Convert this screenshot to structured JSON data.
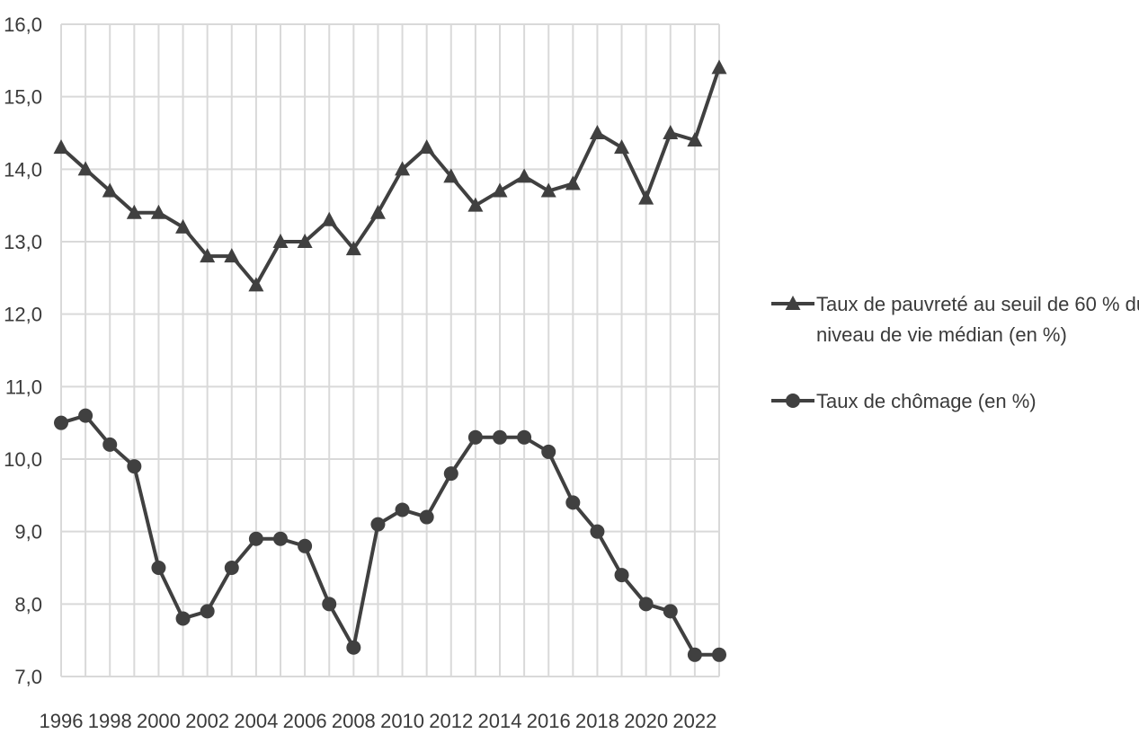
{
  "chart_data": {
    "type": "line",
    "title": "",
    "xlabel": "",
    "ylabel": "",
    "x": [
      1996,
      1997,
      1998,
      1999,
      2000,
      2001,
      2002,
      2003,
      2004,
      2005,
      2006,
      2007,
      2008,
      2009,
      2010,
      2011,
      2012,
      2013,
      2014,
      2015,
      2016,
      2017,
      2018,
      2019,
      2020,
      2021,
      2022,
      2023
    ],
    "xlim": [
      1996,
      2023
    ],
    "ylim": [
      7.0,
      16.0
    ],
    "x_tick_labels": [
      "1996",
      "1998",
      "2000",
      "2002",
      "2004",
      "2006",
      "2008",
      "2010",
      "2012",
      "2014",
      "2016",
      "2018",
      "2020",
      "2022"
    ],
    "y_tick_labels": [
      "7,0",
      "8,0",
      "9,0",
      "10,0",
      "11,0",
      "12,0",
      "13,0",
      "14,0",
      "15,0",
      "16,0"
    ],
    "grid": true,
    "legend_position": "right",
    "series": [
      {
        "name": "Taux de pauvreté au seuil de 60 % du niveau de vie médian (en %)",
        "name_lines": [
          "Taux de pauvreté au seuil de 60 % du",
          "niveau de vie médian (en %)"
        ],
        "marker": "triangle",
        "values": [
          14.3,
          14.0,
          13.7,
          13.4,
          13.4,
          13.2,
          12.8,
          12.8,
          12.4,
          13.0,
          13.0,
          13.3,
          12.9,
          13.4,
          14.0,
          14.3,
          13.9,
          13.5,
          13.7,
          13.9,
          13.7,
          13.8,
          14.5,
          14.3,
          13.6,
          14.5,
          14.4,
          15.4
        ]
      },
      {
        "name": "Taux de chômage (en %)",
        "name_lines": [
          "Taux de chômage (en %)"
        ],
        "marker": "circle",
        "values": [
          10.5,
          10.6,
          10.2,
          9.9,
          8.5,
          7.8,
          7.9,
          8.5,
          8.9,
          8.9,
          8.8,
          8.0,
          7.4,
          9.1,
          9.3,
          9.2,
          9.8,
          10.3,
          10.3,
          10.3,
          10.1,
          9.4,
          9.0,
          8.4,
          8.0,
          7.9,
          7.3,
          7.3
        ]
      }
    ],
    "colors": {
      "line": "#404040",
      "grid": "#d9d9d9",
      "text": "#3a3a3a"
    }
  }
}
